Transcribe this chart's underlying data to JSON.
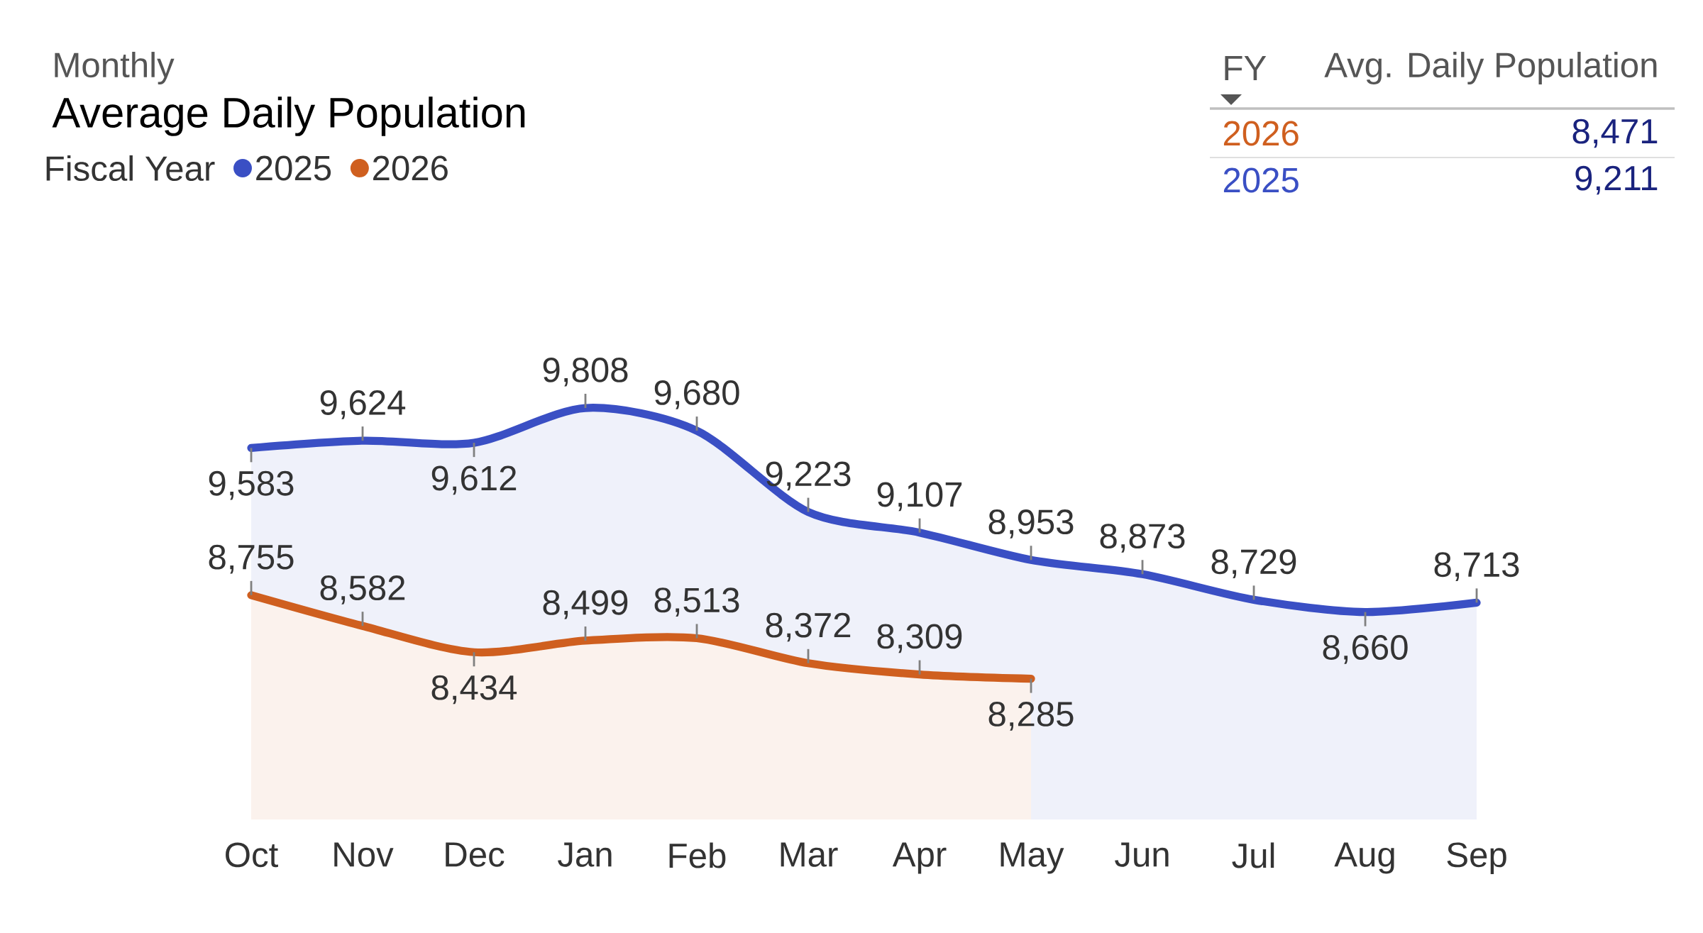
{
  "chart_data": {
    "type": "area",
    "subtitle": "Monthly",
    "title": "Average Daily Population",
    "legend_title": "Fiscal Year",
    "legend": "top left",
    "tick_labels": "x",
    "categories": [
      "Oct",
      "Nov",
      "Dec",
      "Jan",
      "Feb",
      "Mar",
      "Apr",
      "May",
      "Jun",
      "Jul",
      "Aug",
      "Sep"
    ],
    "series": [
      {
        "name": "2025",
        "color": "#3a4fc4",
        "values": [
          9583,
          9624,
          9612,
          9808,
          9680,
          9223,
          9107,
          8953,
          8873,
          8729,
          8660,
          8713
        ],
        "value_labels": [
          "9,583",
          "9,624",
          "9,612",
          "9,808",
          "9,680",
          "9,223",
          "9,107",
          "8,953",
          "8,873",
          "8,729",
          "8,660",
          "8,713"
        ]
      },
      {
        "name": "2026",
        "color": "#cf5f1f",
        "values": [
          8755,
          8582,
          8434,
          8499,
          8513,
          8372,
          8309,
          8285,
          null,
          null,
          null,
          null
        ],
        "value_labels": [
          "8,755",
          "8,582",
          "8,434",
          "8,499",
          "8,513",
          "8,372",
          "8,309",
          "8,285",
          null,
          null,
          null,
          null
        ]
      }
    ],
    "annotations": [
      "FY",
      "Avg. Daily Population",
      "2026",
      "8,471",
      "2025",
      "9,211"
    ]
  }
}
